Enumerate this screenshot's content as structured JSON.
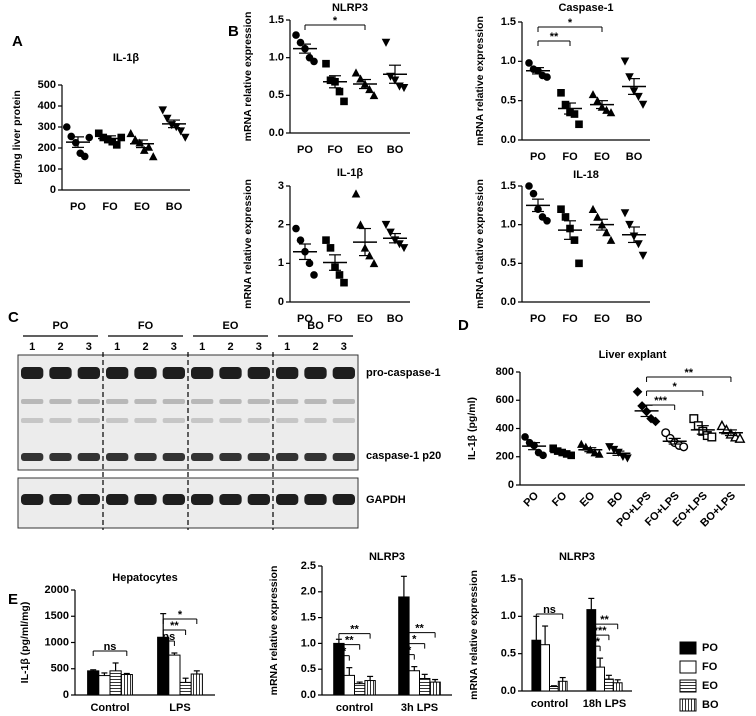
{
  "chart_data": [
    {
      "panel": "A",
      "type": "dot",
      "title": "IL-1β",
      "y_label": "pg/mg liver protein",
      "categories": [
        "PO",
        "FO",
        "EO",
        "BO"
      ],
      "markers": [
        "circle",
        "square",
        "triangle",
        "triangle-down"
      ],
      "points": [
        [
          300,
          255,
          225,
          175,
          160,
          250
        ],
        [
          270,
          250,
          240,
          230,
          215,
          250
        ],
        [
          270,
          240,
          225,
          190,
          205,
          160
        ],
        [
          380,
          340,
          310,
          300,
          280,
          250
        ]
      ],
      "means": [
        228,
        245,
        220,
        315
      ],
      "errors": [
        25,
        13,
        18,
        18
      ],
      "ylim": [
        0,
        500
      ],
      "yticks": [
        0,
        100,
        200,
        300,
        400,
        500
      ]
    },
    {
      "panel": "B",
      "type": "dot",
      "title": "NLRP3",
      "y_label": "mRNA relative expression",
      "categories": [
        "PO",
        "FO",
        "EO",
        "BO"
      ],
      "markers": [
        "circle",
        "square",
        "triangle",
        "triangle-down"
      ],
      "points": [
        [
          1.3,
          1.2,
          1.12,
          1.0,
          0.95
        ],
        [
          0.92,
          0.7,
          0.68,
          0.55,
          0.42
        ],
        [
          0.8,
          0.72,
          0.65,
          0.58,
          0.5
        ],
        [
          1.2,
          0.75,
          0.7,
          0.62,
          0.6
        ]
      ],
      "means": [
        1.12,
        0.68,
        0.65,
        0.78
      ],
      "errors": [
        0.06,
        0.08,
        0.06,
        0.12
      ],
      "ylim": [
        0,
        1.5
      ],
      "yticks": [
        {
          "value": 0,
          "label": "0.0"
        },
        0.5,
        {
          "value": 1,
          "label": "1.0"
        },
        1.5
      ],
      "brackets": [
        {
          "from": 0,
          "to": 2,
          "label": "*"
        }
      ]
    },
    {
      "type": "dot",
      "title": "Caspase-1",
      "y_label": "mRNA relative expression",
      "categories": [
        "PO",
        "FO",
        "EO",
        "BO"
      ],
      "markers": [
        "circle",
        "square",
        "triangle",
        "triangle-down"
      ],
      "points": [
        [
          0.98,
          0.9,
          0.88,
          0.82,
          0.8
        ],
        [
          0.6,
          0.45,
          0.35,
          0.33,
          0.2
        ],
        [
          0.58,
          0.5,
          0.42,
          0.38,
          0.35
        ],
        [
          1.0,
          0.8,
          0.62,
          0.55,
          0.45
        ]
      ],
      "means": [
        0.88,
        0.4,
        0.45,
        0.68
      ],
      "errors": [
        0.04,
        0.07,
        0.05,
        0.1
      ],
      "ylim": [
        0,
        1.5
      ],
      "yticks": [
        {
          "value": 0,
          "label": "0.0"
        },
        0.5,
        {
          "value": 1,
          "label": "1.0"
        },
        1.5
      ],
      "brackets": [
        {
          "from": 0,
          "to": 1,
          "label": "**"
        },
        {
          "from": 0,
          "to": 2,
          "label": "*"
        }
      ]
    },
    {
      "type": "dot",
      "title": "IL-1β",
      "y_label": "mRNA relative expression",
      "categories": [
        "PO",
        "FO",
        "EO",
        "BO"
      ],
      "markers": [
        "circle",
        "square",
        "triangle",
        "triangle-down"
      ],
      "points": [
        [
          1.9,
          1.6,
          1.3,
          1.0,
          0.7
        ],
        [
          1.6,
          1.4,
          0.9,
          0.7,
          0.5
        ],
        [
          2.8,
          2.0,
          1.4,
          1.2,
          1.0
        ],
        [
          2.0,
          1.8,
          1.6,
          1.5,
          1.4
        ]
      ],
      "means": [
        1.3,
        1.02,
        1.55,
        1.65
      ],
      "errors": [
        0.2,
        0.2,
        0.35,
        0.12
      ],
      "ylim": [
        0,
        3
      ],
      "yticks": [
        0,
        1,
        2,
        3
      ]
    },
    {
      "type": "dot",
      "title": "IL-18",
      "y_label": "mRNA relative expression",
      "categories": [
        "PO",
        "FO",
        "EO",
        "BO"
      ],
      "markers": [
        "circle",
        "square",
        "triangle",
        "triangle-down"
      ],
      "points": [
        [
          1.5,
          1.4,
          1.2,
          1.1,
          1.05
        ],
        [
          1.2,
          1.1,
          0.95,
          0.8,
          0.5
        ],
        [
          1.2,
          1.1,
          1.0,
          0.9,
          0.8
        ],
        [
          1.15,
          1.0,
          0.85,
          0.75,
          0.6
        ]
      ],
      "means": [
        1.25,
        0.93,
        1.0,
        0.87
      ],
      "errors": [
        0.08,
        0.12,
        0.07,
        0.1
      ],
      "ylim": [
        0,
        1.5
      ],
      "yticks": [
        {
          "value": 0,
          "label": "0.0"
        },
        0.5,
        {
          "value": 1,
          "label": "1.0"
        },
        1.5
      ]
    },
    {
      "panel": "C",
      "type": "blot",
      "groups": [
        "PO",
        "FO",
        "EO",
        "BO"
      ],
      "lanes": [
        "1",
        "2",
        "3"
      ],
      "bands": [
        "pro-caspase-1",
        "caspase-1 p20",
        "GAPDH"
      ]
    },
    {
      "panel": "D",
      "type": "dot",
      "title": "Liver explant",
      "y_label": "IL-1β (pg/ml)",
      "categories": [
        "PO",
        "FO",
        "EO",
        "BO",
        "PO+LPS",
        "FO+LPS",
        "EO+LPS",
        "BO+LPS"
      ],
      "markers": [
        "circle",
        "square",
        "triangle",
        "triangle-down",
        "diamond",
        "circle-open",
        "square-open",
        "triangle-open"
      ],
      "points": [
        [
          340,
          300,
          280,
          230,
          210
        ],
        [
          260,
          240,
          230,
          220,
          210
        ],
        [
          290,
          270,
          250,
          230,
          220
        ],
        [
          270,
          250,
          230,
          200,
          190
        ],
        [
          660,
          560,
          520,
          470,
          450
        ],
        [
          370,
          330,
          300,
          280,
          270
        ],
        [
          470,
          420,
          380,
          350,
          340
        ],
        [
          420,
          390,
          360,
          340,
          330
        ]
      ],
      "means": [
        275,
        230,
        250,
        225,
        525,
        310,
        390,
        370
      ],
      "errors": [
        25,
        10,
        14,
        15,
        40,
        20,
        30,
        20
      ],
      "ylim": [
        0,
        800
      ],
      "yticks": [
        0,
        200,
        400,
        600,
        800
      ],
      "brackets": [
        {
          "from": 4,
          "to": 5,
          "label": "***"
        },
        {
          "from": 4,
          "to": 6,
          "label": "*"
        },
        {
          "from": 4,
          "to": 7,
          "label": "**"
        }
      ]
    },
    {
      "panel": "E",
      "type": "bar",
      "title": "Hepatocytes",
      "y_label": "IL-1β (pg/ml/mg)",
      "categories": [
        "Control",
        "LPS"
      ],
      "series": [
        {
          "name": "PO",
          "color": "#000000",
          "pattern": "none",
          "values": [
            460,
            1100
          ],
          "errors": [
            20,
            450
          ]
        },
        {
          "name": "FO",
          "color": "#ffffff",
          "pattern": "none",
          "values": [
            370,
            760
          ],
          "errors": [
            50,
            40
          ]
        },
        {
          "name": "EO",
          "color": "#ffffff",
          "pattern": "horizontal",
          "values": [
            460,
            240
          ],
          "errors": [
            150,
            80
          ]
        },
        {
          "name": "BO",
          "color": "#ffffff",
          "pattern": "vertical",
          "values": [
            390,
            400
          ],
          "errors": [
            20,
            60
          ]
        }
      ],
      "ylim": [
        0,
        2000
      ],
      "yticks": [
        0,
        500,
        1000,
        1500,
        2000
      ],
      "brackets": [
        {
          "group": 0,
          "from": 0,
          "to": 3,
          "label": "ns"
        },
        {
          "group": 1,
          "from": 0,
          "to": 1,
          "label": "ns"
        },
        {
          "group": 1,
          "from": 0,
          "to": 2,
          "label": "**"
        },
        {
          "group": 1,
          "from": 0,
          "to": 3,
          "label": "*"
        }
      ]
    },
    {
      "type": "bar",
      "title": "NLRP3",
      "y_label": "mRNA relative expression",
      "categories": [
        "control",
        "3h LPS"
      ],
      "series": [
        {
          "name": "PO",
          "color": "#000000",
          "pattern": "none",
          "values": [
            1.0,
            1.9
          ],
          "errors": [
            0.08,
            0.4
          ]
        },
        {
          "name": "FO",
          "color": "#ffffff",
          "pattern": "none",
          "values": [
            0.38,
            0.47
          ],
          "errors": [
            0.15,
            0.08
          ]
        },
        {
          "name": "EO",
          "color": "#ffffff",
          "pattern": "horizontal",
          "values": [
            0.22,
            0.32
          ],
          "errors": [
            0.03,
            0.08
          ]
        },
        {
          "name": "BO",
          "color": "#ffffff",
          "pattern": "vertical",
          "values": [
            0.28,
            0.25
          ],
          "errors": [
            0.08,
            0.05
          ]
        }
      ],
      "ylim": [
        0,
        2.5
      ],
      "yticks": [
        {
          "value": 0,
          "label": "0.0"
        },
        0.5,
        {
          "value": 1,
          "label": "1.0"
        },
        1.5,
        {
          "value": 2,
          "label": "2.0"
        },
        2.5
      ],
      "brackets": [
        {
          "group": 0,
          "from": 0,
          "to": 1,
          "label": "*"
        },
        {
          "group": 0,
          "from": 0,
          "to": 2,
          "label": "**"
        },
        {
          "group": 0,
          "from": 0,
          "to": 3,
          "label": "**"
        },
        {
          "group": 1,
          "from": 0,
          "to": 1,
          "label": "*"
        },
        {
          "group": 1,
          "from": 0,
          "to": 2,
          "label": "*"
        },
        {
          "group": 1,
          "from": 0,
          "to": 3,
          "label": "**"
        }
      ]
    },
    {
      "type": "bar",
      "title": "NLRP3",
      "y_label": "mRNA relative expression",
      "legend": "right",
      "categories": [
        "control",
        "18h LPS"
      ],
      "series": [
        {
          "name": "PO",
          "color": "#000000",
          "pattern": "none",
          "values": [
            0.68,
            1.09
          ],
          "errors": [
            0.32,
            0.15
          ]
        },
        {
          "name": "FO",
          "color": "#ffffff",
          "pattern": "none",
          "values": [
            0.62,
            0.32
          ],
          "errors": [
            0.25,
            0.12
          ]
        },
        {
          "name": "EO",
          "color": "#ffffff",
          "pattern": "horizontal",
          "values": [
            0.06,
            0.16
          ],
          "errors": [
            0.01,
            0.05
          ]
        },
        {
          "name": "BO",
          "color": "#ffffff",
          "pattern": "vertical",
          "values": [
            0.13,
            0.11
          ],
          "errors": [
            0.05,
            0.04
          ]
        }
      ],
      "ylim": [
        0,
        1.5
      ],
      "yticks": [
        {
          "value": 0,
          "label": "0.0"
        },
        0.5,
        {
          "value": 1,
          "label": "1.0"
        },
        1.5
      ],
      "brackets": [
        {
          "group": 0,
          "from": 0,
          "to": 3,
          "label": "ns"
        },
        {
          "group": 1,
          "from": 0,
          "to": 1,
          "label": "**"
        },
        {
          "group": 1,
          "from": 0,
          "to": 2,
          "label": "***"
        },
        {
          "group": 1,
          "from": 0,
          "to": 3,
          "label": "**"
        }
      ]
    }
  ]
}
